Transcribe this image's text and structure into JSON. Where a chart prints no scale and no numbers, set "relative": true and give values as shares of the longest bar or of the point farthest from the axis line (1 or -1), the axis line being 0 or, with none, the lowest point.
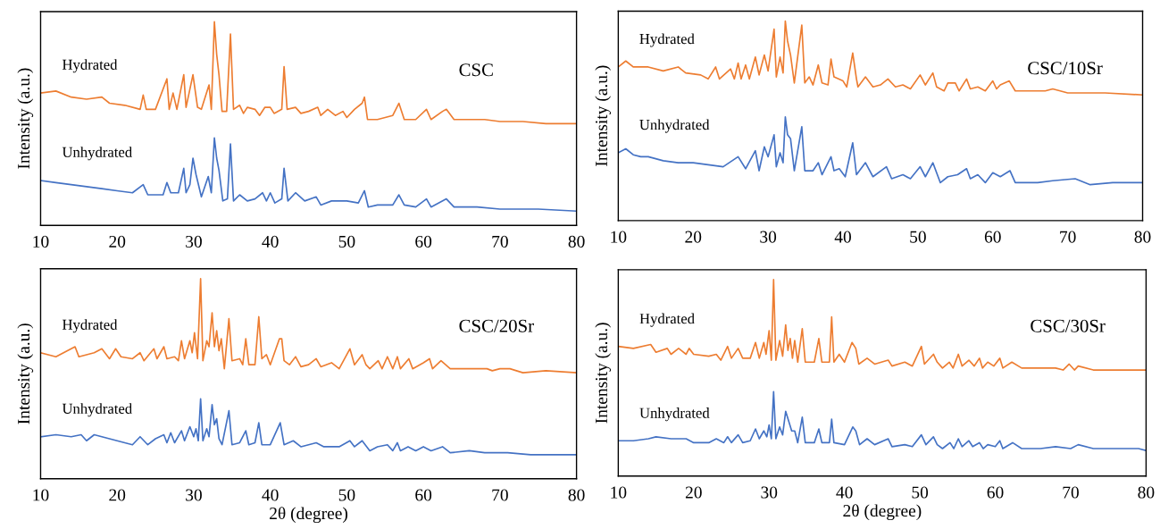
{
  "chart_data": [
    {
      "type": "line",
      "title": "CSC",
      "ylabel": "Intensity (a.u.)",
      "relative": true,
      "xlim": [
        10,
        80
      ],
      "xticks": [
        10,
        20,
        30,
        40,
        50,
        60,
        70,
        80
      ],
      "tick_labels": "x",
      "grid": false,
      "legend": false,
      "marker": "none",
      "line_style": "solid",
      "series": [
        {
          "name": "Hydrated",
          "color": "#ed7d31",
          "x": [
            10,
            12,
            14,
            16,
            18,
            19,
            21,
            23,
            23.4,
            23.8,
            25,
            26.5,
            26.8,
            27.3,
            27.8,
            28.7,
            29,
            29.9,
            30.5,
            31,
            32,
            32.3,
            32.7,
            33,
            33.3,
            33.7,
            34.3,
            34.8,
            35.2,
            36,
            36.5,
            37,
            38,
            38.6,
            39.3,
            40,
            40.5,
            41.5,
            41.8,
            42.2,
            43.3,
            44,
            45,
            46.2,
            46.6,
            47.5,
            48.5,
            49.5,
            50,
            51,
            52,
            52.3,
            52.7,
            54,
            56,
            56.8,
            57.5,
            59,
            60.4,
            61,
            62.5,
            63,
            64,
            66,
            68,
            70,
            73,
            76,
            80
          ],
          "values": [
            0.65,
            0.66,
            0.63,
            0.62,
            0.63,
            0.6,
            0.59,
            0.57,
            0.64,
            0.57,
            0.57,
            0.72,
            0.57,
            0.65,
            0.57,
            0.74,
            0.58,
            0.74,
            0.58,
            0.57,
            0.69,
            0.57,
            1.0,
            0.84,
            0.74,
            0.56,
            0.56,
            0.94,
            0.57,
            0.59,
            0.55,
            0.58,
            0.57,
            0.54,
            0.58,
            0.58,
            0.55,
            0.57,
            0.78,
            0.57,
            0.58,
            0.55,
            0.56,
            0.58,
            0.54,
            0.57,
            0.54,
            0.56,
            0.53,
            0.57,
            0.6,
            0.63,
            0.52,
            0.52,
            0.54,
            0.6,
            0.52,
            0.52,
            0.57,
            0.52,
            0.56,
            0.57,
            0.52,
            0.52,
            0.52,
            0.51,
            0.51,
            0.5,
            0.5
          ]
        },
        {
          "name": "Unhydrated",
          "color": "#4472c4",
          "x": [
            10,
            12,
            14,
            16,
            18,
            20,
            22,
            23.4,
            24,
            26,
            26.5,
            27,
            28,
            28.7,
            29,
            29.5,
            29.9,
            30.3,
            31,
            31.9,
            32.3,
            32.7,
            33,
            33.3,
            33.8,
            34.4,
            34.8,
            35.2,
            36,
            37,
            38,
            39,
            39.5,
            40,
            40.6,
            41.5,
            41.8,
            42.3,
            43.3,
            44.5,
            46,
            46.6,
            48,
            50,
            51.5,
            52.3,
            52.8,
            54,
            56,
            56.8,
            57.5,
            59,
            60.4,
            61,
            63,
            64,
            67,
            70,
            75,
            80
          ],
          "values": [
            0.22,
            0.21,
            0.2,
            0.19,
            0.18,
            0.17,
            0.16,
            0.2,
            0.15,
            0.15,
            0.21,
            0.16,
            0.16,
            0.28,
            0.16,
            0.2,
            0.33,
            0.25,
            0.14,
            0.24,
            0.16,
            0.43,
            0.33,
            0.27,
            0.12,
            0.13,
            0.4,
            0.12,
            0.15,
            0.12,
            0.13,
            0.16,
            0.12,
            0.16,
            0.11,
            0.13,
            0.28,
            0.12,
            0.16,
            0.12,
            0.14,
            0.1,
            0.12,
            0.12,
            0.11,
            0.17,
            0.09,
            0.1,
            0.1,
            0.15,
            0.1,
            0.09,
            0.13,
            0.09,
            0.13,
            0.09,
            0.09,
            0.08,
            0.08,
            0.07
          ]
        }
      ]
    },
    {
      "type": "line",
      "title": "CSC/10Sr",
      "ylabel": "Intensity (a.u.)",
      "relative": true,
      "xlim": [
        10,
        80
      ],
      "xticks": [
        10,
        20,
        30,
        40,
        50,
        60,
        70,
        80
      ],
      "tick_labels": "x",
      "grid": false,
      "legend": false,
      "marker": "none",
      "line_style": "solid",
      "series": [
        {
          "name": "Hydrated",
          "color": "#ed7d31",
          "x": [
            10,
            11,
            12,
            14,
            16,
            18,
            19,
            21,
            22,
            23,
            23.5,
            25,
            25.5,
            26,
            26.4,
            27,
            27.5,
            28.3,
            28.8,
            29.5,
            30,
            30.8,
            31.1,
            31.6,
            32,
            32.3,
            32.6,
            33,
            33.5,
            34.5,
            34.9,
            35.5,
            36,
            36.7,
            37.2,
            38,
            38.4,
            38.8,
            40,
            40.5,
            41.3,
            41.8,
            42,
            43,
            44,
            45,
            46,
            47,
            48,
            49,
            50.3,
            51,
            52,
            52.5,
            53.5,
            54,
            55,
            55.5,
            56.5,
            57,
            58,
            59,
            60,
            60.5,
            61,
            62.2,
            63,
            65,
            67,
            68,
            70,
            75,
            80
          ],
          "values": [
            0.77,
            0.8,
            0.77,
            0.77,
            0.75,
            0.77,
            0.74,
            0.73,
            0.71,
            0.77,
            0.71,
            0.76,
            0.71,
            0.79,
            0.71,
            0.78,
            0.71,
            0.82,
            0.73,
            0.83,
            0.75,
            0.96,
            0.72,
            0.82,
            0.74,
            1.0,
            0.9,
            0.83,
            0.69,
            0.98,
            0.69,
            0.72,
            0.68,
            0.78,
            0.69,
            0.68,
            0.81,
            0.72,
            0.7,
            0.67,
            0.84,
            0.71,
            0.67,
            0.72,
            0.67,
            0.68,
            0.71,
            0.67,
            0.68,
            0.66,
            0.73,
            0.68,
            0.74,
            0.67,
            0.65,
            0.69,
            0.69,
            0.65,
            0.71,
            0.66,
            0.67,
            0.65,
            0.7,
            0.66,
            0.68,
            0.7,
            0.65,
            0.65,
            0.65,
            0.66,
            0.64,
            0.64,
            0.63
          ]
        },
        {
          "name": "Unhydrated",
          "color": "#4472c4",
          "x": [
            10,
            11,
            12,
            13,
            14,
            16,
            18,
            20,
            22,
            24,
            26,
            27,
            28.3,
            28.8,
            29.5,
            30,
            30.8,
            31.1,
            31.6,
            32,
            32.3,
            32.6,
            33,
            33.5,
            34.5,
            34.9,
            36,
            36.7,
            37.2,
            38.4,
            38.8,
            39.5,
            40.3,
            41.3,
            41.8,
            43,
            44,
            45.8,
            46.5,
            48,
            49,
            50.3,
            51,
            52,
            53,
            54,
            55.3,
            56.5,
            57,
            58,
            59,
            60,
            61,
            62.3,
            63,
            66,
            68,
            71,
            73,
            76,
            80
          ],
          "values": [
            0.34,
            0.36,
            0.33,
            0.32,
            0.32,
            0.3,
            0.29,
            0.29,
            0.28,
            0.27,
            0.32,
            0.26,
            0.35,
            0.25,
            0.37,
            0.32,
            0.43,
            0.27,
            0.34,
            0.29,
            0.52,
            0.43,
            0.41,
            0.25,
            0.47,
            0.25,
            0.25,
            0.29,
            0.23,
            0.32,
            0.25,
            0.26,
            0.22,
            0.39,
            0.23,
            0.29,
            0.22,
            0.27,
            0.21,
            0.23,
            0.21,
            0.27,
            0.22,
            0.29,
            0.19,
            0.22,
            0.23,
            0.26,
            0.21,
            0.23,
            0.19,
            0.24,
            0.22,
            0.25,
            0.19,
            0.19,
            0.2,
            0.21,
            0.18,
            0.19,
            0.19
          ]
        }
      ]
    },
    {
      "type": "line",
      "title": "CSC/20Sr",
      "xlabel": "2θ (degree)",
      "ylabel": "Intensity (a.u.)",
      "relative": true,
      "xlim": [
        10,
        80
      ],
      "xticks": [
        10,
        20,
        30,
        40,
        50,
        60,
        70,
        80
      ],
      "tick_labels": "x",
      "grid": false,
      "legend": false,
      "marker": "none",
      "line_style": "solid",
      "series": [
        {
          "name": "Hydrated",
          "color": "#ed7d31",
          "x": [
            10,
            12,
            14.5,
            15,
            17,
            18,
            19,
            19.8,
            20.5,
            22,
            23,
            23.5,
            24.8,
            25.2,
            26.1,
            26.5,
            27.5,
            28,
            28.4,
            28.8,
            29.5,
            29.8,
            30.1,
            30.5,
            30.9,
            31.2,
            31.7,
            32,
            32.4,
            32.7,
            33,
            33.3,
            33.6,
            34,
            34.6,
            35,
            36,
            36.4,
            36.8,
            37.2,
            38,
            38.5,
            38.9,
            39.5,
            40,
            41.2,
            41.5,
            41.8,
            42.5,
            43.3,
            44,
            45,
            46,
            46.6,
            48,
            49,
            50.4,
            51,
            52,
            52.5,
            53,
            54.1,
            54.6,
            55.3,
            56,
            56.6,
            57,
            58.1,
            58.6,
            60,
            60.8,
            61.2,
            62.3,
            63.5,
            66,
            68.3,
            69,
            70,
            71.3,
            73,
            76,
            80
          ],
          "values": [
            0.63,
            0.61,
            0.66,
            0.61,
            0.63,
            0.65,
            0.6,
            0.65,
            0.61,
            0.6,
            0.63,
            0.59,
            0.65,
            0.6,
            0.66,
            0.6,
            0.61,
            0.59,
            0.69,
            0.6,
            0.69,
            0.63,
            0.73,
            0.6,
            1.0,
            0.59,
            0.69,
            0.66,
            0.83,
            0.66,
            0.74,
            0.64,
            0.7,
            0.55,
            0.8,
            0.59,
            0.6,
            0.57,
            0.7,
            0.57,
            0.57,
            0.81,
            0.6,
            0.62,
            0.57,
            0.7,
            0.7,
            0.59,
            0.57,
            0.61,
            0.56,
            0.57,
            0.6,
            0.56,
            0.58,
            0.55,
            0.65,
            0.57,
            0.62,
            0.57,
            0.55,
            0.59,
            0.55,
            0.61,
            0.55,
            0.61,
            0.55,
            0.6,
            0.55,
            0.58,
            0.6,
            0.55,
            0.59,
            0.55,
            0.55,
            0.55,
            0.54,
            0.55,
            0.55,
            0.53,
            0.54,
            0.53
          ]
        },
        {
          "name": "Unhydrated",
          "color": "#4472c4",
          "x": [
            10,
            12,
            14,
            15.3,
            16,
            17,
            18,
            20,
            22,
            23,
            24,
            25,
            26.1,
            26.5,
            27,
            27.5,
            28.4,
            28.8,
            29.5,
            30,
            30.3,
            30.6,
            30.9,
            31.2,
            31.7,
            32,
            32.4,
            32.7,
            33,
            33.3,
            33.7,
            34.6,
            35,
            36,
            36.8,
            37.2,
            38,
            38.5,
            38.9,
            40,
            41.3,
            41.8,
            43,
            44,
            46,
            47,
            49,
            50.4,
            51,
            52,
            53,
            54,
            55.3,
            56,
            56.6,
            57,
            58,
            59,
            60,
            61,
            62.5,
            63.5,
            66,
            68,
            71,
            74,
            77,
            80
          ],
          "values": [
            0.21,
            0.22,
            0.21,
            0.22,
            0.19,
            0.22,
            0.21,
            0.19,
            0.17,
            0.21,
            0.17,
            0.2,
            0.22,
            0.18,
            0.23,
            0.18,
            0.24,
            0.19,
            0.26,
            0.21,
            0.25,
            0.19,
            0.4,
            0.19,
            0.25,
            0.21,
            0.37,
            0.27,
            0.3,
            0.2,
            0.17,
            0.34,
            0.17,
            0.18,
            0.24,
            0.17,
            0.18,
            0.28,
            0.17,
            0.17,
            0.28,
            0.17,
            0.19,
            0.16,
            0.18,
            0.16,
            0.16,
            0.19,
            0.16,
            0.19,
            0.14,
            0.16,
            0.17,
            0.14,
            0.18,
            0.14,
            0.16,
            0.14,
            0.16,
            0.14,
            0.16,
            0.13,
            0.14,
            0.13,
            0.13,
            0.12,
            0.12,
            0.12
          ]
        }
      ]
    },
    {
      "type": "line",
      "title": "CSC/30Sr",
      "xlabel": "2θ (degree)",
      "ylabel": "Intensity (a.u.)",
      "relative": true,
      "xlim": [
        10,
        80
      ],
      "xticks": [
        10,
        20,
        30,
        40,
        50,
        60,
        70,
        80
      ],
      "tick_labels": "x",
      "grid": false,
      "legend": false,
      "marker": "none",
      "line_style": "solid",
      "series": [
        {
          "name": "Hydrated",
          "color": "#ed7d31",
          "x": [
            10,
            12,
            14.3,
            15,
            16.5,
            17,
            18,
            19,
            19.4,
            20,
            22,
            23,
            23.6,
            24.5,
            25,
            25.9,
            26.5,
            27.5,
            28.2,
            28.7,
            29.3,
            29.6,
            30,
            30.3,
            30.6,
            30.9,
            31.4,
            31.8,
            32.2,
            32.5,
            32.8,
            33.1,
            33.4,
            33.8,
            34.4,
            34.8,
            36,
            36.6,
            37,
            38,
            38.3,
            38.6,
            39.3,
            40,
            41,
            41.5,
            41.9,
            43,
            44,
            45.8,
            46.3,
            48,
            49,
            50.2,
            50.6,
            51.8,
            52.3,
            53,
            53.9,
            54.4,
            55.1,
            55.6,
            56.5,
            57.2,
            57.9,
            58.3,
            59,
            59.8,
            60.6,
            61,
            62.2,
            63.5,
            66,
            68,
            69,
            69.8,
            70.5,
            71,
            73,
            76,
            79,
            80
          ],
          "values": [
            0.66,
            0.65,
            0.67,
            0.63,
            0.65,
            0.62,
            0.65,
            0.62,
            0.65,
            0.62,
            0.61,
            0.62,
            0.59,
            0.66,
            0.6,
            0.65,
            0.6,
            0.6,
            0.68,
            0.6,
            0.68,
            0.62,
            0.74,
            0.59,
            1.0,
            0.59,
            0.69,
            0.61,
            0.77,
            0.64,
            0.7,
            0.6,
            0.69,
            0.58,
            0.75,
            0.58,
            0.58,
            0.7,
            0.58,
            0.58,
            0.81,
            0.58,
            0.62,
            0.58,
            0.68,
            0.65,
            0.57,
            0.6,
            0.57,
            0.59,
            0.56,
            0.58,
            0.56,
            0.66,
            0.57,
            0.62,
            0.58,
            0.55,
            0.58,
            0.55,
            0.62,
            0.56,
            0.59,
            0.56,
            0.6,
            0.55,
            0.58,
            0.56,
            0.6,
            0.55,
            0.58,
            0.55,
            0.55,
            0.55,
            0.54,
            0.57,
            0.54,
            0.56,
            0.54,
            0.54,
            0.54,
            0.54
          ]
        },
        {
          "name": "Unhydrated",
          "color": "#4472c4",
          "x": [
            10,
            12,
            14,
            15,
            17,
            19,
            20,
            22,
            23,
            24,
            24.5,
            25,
            25.9,
            26.5,
            27.5,
            28.2,
            28.7,
            29.3,
            29.7,
            30,
            30.3,
            30.6,
            30.9,
            31.4,
            31.8,
            32.2,
            32.6,
            33,
            33.4,
            33.8,
            34.4,
            34.8,
            36,
            36.6,
            37,
            38,
            38.3,
            38.6,
            40,
            41.1,
            41.5,
            42,
            43,
            44,
            45.8,
            46.3,
            48,
            49,
            50.2,
            50.8,
            51.8,
            52.3,
            53,
            54,
            54.5,
            55.1,
            55.6,
            56.5,
            57,
            57.9,
            58.4,
            59,
            60,
            60.6,
            61,
            62.3,
            63.5,
            66,
            68,
            70,
            71,
            73,
            76,
            79,
            80
          ],
          "values": [
            0.18,
            0.18,
            0.19,
            0.2,
            0.19,
            0.19,
            0.17,
            0.17,
            0.19,
            0.17,
            0.2,
            0.17,
            0.21,
            0.17,
            0.18,
            0.24,
            0.19,
            0.23,
            0.2,
            0.26,
            0.19,
            0.43,
            0.19,
            0.25,
            0.21,
            0.33,
            0.28,
            0.23,
            0.23,
            0.17,
            0.3,
            0.17,
            0.17,
            0.24,
            0.17,
            0.17,
            0.29,
            0.17,
            0.16,
            0.25,
            0.23,
            0.16,
            0.19,
            0.16,
            0.19,
            0.15,
            0.16,
            0.15,
            0.21,
            0.16,
            0.2,
            0.16,
            0.14,
            0.17,
            0.14,
            0.19,
            0.15,
            0.18,
            0.15,
            0.17,
            0.14,
            0.16,
            0.15,
            0.18,
            0.14,
            0.17,
            0.14,
            0.14,
            0.15,
            0.14,
            0.16,
            0.14,
            0.14,
            0.14,
            0.13
          ]
        }
      ]
    }
  ]
}
